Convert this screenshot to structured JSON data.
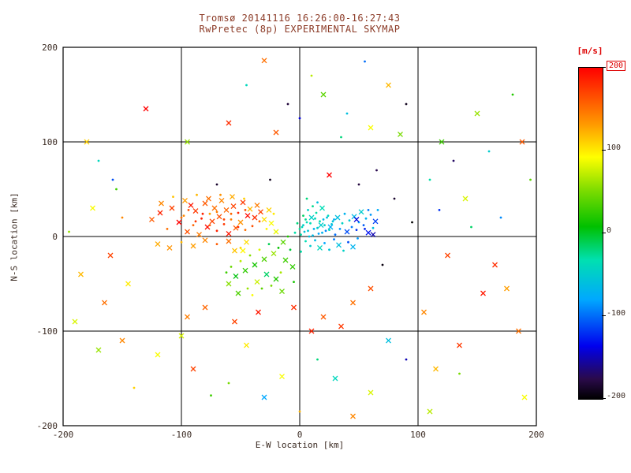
{
  "title": {
    "line1": "Tromsø 20141116 16:26:00-16:27:43",
    "line2": "RwPretec (8p) EXPERIMENTAL SKYMAP"
  },
  "colors": {
    "title_text": "#8b3a26",
    "axis_text": "#3a2a22",
    "frame": "#000000",
    "mps_label": "#dd0000",
    "top_tick": "#dd0000",
    "background": "#ffffff"
  },
  "chart_data": {
    "type": "scatter",
    "title": "Tromsø 20141116 16:26:00-16:27:43 — RwPretec (8p) EXPERIMENTAL SKYMAP",
    "xlabel": "E-W location [km]",
    "ylabel": "N-S location [km]",
    "xlim": [
      -200,
      200
    ],
    "ylim": [
      -200,
      200
    ],
    "xticks": [
      -200,
      -100,
      0,
      100,
      200
    ],
    "yticks": [
      -200,
      -100,
      0,
      100,
      200
    ],
    "grid": true,
    "legend_position": "none",
    "colorbar": {
      "label": "[m/s]",
      "ticks": [
        200,
        100,
        0,
        -100,
        -200
      ],
      "range": [
        -200,
        200
      ],
      "stops": [
        {
          "t": 0.0,
          "c": "#000000"
        },
        {
          "t": 0.06,
          "c": "#2a0a4a"
        },
        {
          "t": 0.16,
          "c": "#0000ee"
        },
        {
          "t": 0.3,
          "c": "#00a8ff"
        },
        {
          "t": 0.42,
          "c": "#00e0b0"
        },
        {
          "t": 0.52,
          "c": "#00c000"
        },
        {
          "t": 0.63,
          "c": "#7ddc00"
        },
        {
          "t": 0.73,
          "c": "#ffff00"
        },
        {
          "t": 0.83,
          "c": "#ff9900"
        },
        {
          "t": 1.0,
          "c": "#ff0000"
        }
      ]
    },
    "point_format": [
      "x_km",
      "y_km",
      "velocity_mps",
      "marker(1=x,0=dot)"
    ],
    "points": [
      [
        -125,
        18,
        160,
        1
      ],
      [
        -118,
        25,
        185,
        1
      ],
      [
        -112,
        8,
        150,
        0
      ],
      [
        -108,
        30,
        170,
        1
      ],
      [
        -102,
        15,
        200,
        1
      ],
      [
        -98,
        22,
        140,
        0
      ],
      [
        -95,
        5,
        165,
        1
      ],
      [
        -92,
        33,
        190,
        1
      ],
      [
        -90,
        12,
        155,
        0
      ],
      [
        -88,
        27,
        175,
        1
      ],
      [
        -85,
        2,
        145,
        1
      ],
      [
        -83,
        19,
        185,
        0
      ],
      [
        -80,
        35,
        160,
        1
      ],
      [
        -78,
        10,
        195,
        1
      ],
      [
        -76,
        24,
        130,
        0
      ],
      [
        -74,
        16,
        170,
        1
      ],
      [
        -72,
        30,
        150,
        1
      ],
      [
        -70,
        6,
        185,
        0
      ],
      [
        -68,
        21,
        165,
        1
      ],
      [
        -66,
        38,
        140,
        1
      ],
      [
        -64,
        13,
        175,
        0
      ],
      [
        -62,
        28,
        155,
        1
      ],
      [
        -60,
        3,
        190,
        1
      ],
      [
        -58,
        18,
        145,
        0
      ],
      [
        -56,
        32,
        170,
        1
      ],
      [
        -54,
        9,
        160,
        1
      ],
      [
        -52,
        25,
        185,
        0
      ],
      [
        -50,
        15,
        135,
        1
      ],
      [
        -48,
        36,
        175,
        1
      ],
      [
        -46,
        7,
        150,
        0
      ],
      [
        -44,
        22,
        195,
        1
      ],
      [
        -42,
        29,
        120,
        1
      ],
      [
        -40,
        11,
        165,
        0
      ],
      [
        -38,
        20,
        180,
        1
      ],
      [
        -36,
        33,
        145,
        1
      ],
      [
        -34,
        16,
        155,
        0
      ],
      [
        -33,
        26,
        170,
        1
      ],
      [
        -47,
        40,
        110,
        0
      ],
      [
        -57,
        42,
        125,
        1
      ],
      [
        -67,
        44,
        135,
        0
      ],
      [
        -77,
        40,
        150,
        1
      ],
      [
        -87,
        44,
        120,
        0
      ],
      [
        -97,
        38,
        130,
        1
      ],
      [
        -107,
        42,
        115,
        0
      ],
      [
        -117,
        35,
        140,
        1
      ],
      [
        -60,
        -5,
        150,
        1
      ],
      [
        -70,
        -8,
        160,
        0
      ],
      [
        -80,
        -4,
        140,
        1
      ],
      [
        -90,
        -10,
        130,
        1
      ],
      [
        -100,
        -6,
        120,
        0
      ],
      [
        -110,
        -12,
        135,
        1
      ],
      [
        -120,
        -8,
        125,
        1
      ],
      [
        -50,
        -12,
        110,
        0
      ],
      [
        -45,
        -6,
        105,
        1
      ],
      [
        -55,
        -15,
        115,
        1
      ],
      [
        -30,
        18,
        105,
        1
      ],
      [
        -28,
        8,
        95,
        0
      ],
      [
        -26,
        28,
        110,
        1
      ],
      [
        -24,
        14,
        90,
        1
      ],
      [
        -22,
        24,
        100,
        0
      ],
      [
        -20,
        5,
        85,
        1
      ],
      [
        -100,
        20,
        150,
        0
      ],
      [
        -94,
        28,
        165,
        0
      ],
      [
        -88,
        16,
        175,
        0
      ],
      [
        -82,
        24,
        185,
        0
      ],
      [
        -76,
        12,
        160,
        0
      ],
      [
        -70,
        26,
        145,
        0
      ],
      [
        -64,
        18,
        170,
        0
      ],
      [
        -58,
        24,
        155,
        0
      ],
      [
        -52,
        10,
        180,
        0
      ],
      [
        -46,
        28,
        165,
        0
      ],
      [
        2,
        10,
        -40,
        0
      ],
      [
        4,
        5,
        -55,
        0
      ],
      [
        6,
        15,
        -35,
        0
      ],
      [
        8,
        0,
        -60,
        0
      ],
      [
        10,
        20,
        -45,
        1
      ],
      [
        12,
        8,
        -70,
        0
      ],
      [
        14,
        25,
        -30,
        0
      ],
      [
        16,
        3,
        -80,
        0
      ],
      [
        18,
        12,
        -50,
        1
      ],
      [
        20,
        18,
        -65,
        0
      ],
      [
        22,
        6,
        -90,
        0
      ],
      [
        24,
        22,
        -40,
        0
      ],
      [
        26,
        10,
        -75,
        1
      ],
      [
        28,
        16,
        -55,
        0
      ],
      [
        30,
        2,
        -100,
        0
      ],
      [
        32,
        20,
        -60,
        1
      ],
      [
        34,
        8,
        -85,
        0
      ],
      [
        36,
        14,
        -45,
        0
      ],
      [
        38,
        24,
        -70,
        0
      ],
      [
        40,
        5,
        -110,
        1
      ],
      [
        42,
        17,
        -55,
        0
      ],
      [
        44,
        10,
        -95,
        0
      ],
      [
        46,
        21,
        -65,
        1
      ],
      [
        48,
        7,
        -120,
        0
      ],
      [
        50,
        15,
        -80,
        0
      ],
      [
        52,
        26,
        -50,
        1
      ],
      [
        54,
        12,
        -105,
        0
      ],
      [
        56,
        19,
        -70,
        0
      ],
      [
        58,
        4,
        -130,
        1
      ],
      [
        60,
        23,
        -85,
        0
      ],
      [
        62,
        9,
        -60,
        0
      ],
      [
        64,
        16,
        -115,
        1
      ],
      [
        66,
        28,
        -75,
        0
      ],
      [
        5,
        -5,
        -35,
        0
      ],
      [
        9,
        -10,
        -50,
        0
      ],
      [
        13,
        -4,
        -65,
        0
      ],
      [
        17,
        -12,
        -40,
        1
      ],
      [
        21,
        -7,
        -80,
        0
      ],
      [
        25,
        -14,
        -55,
        0
      ],
      [
        29,
        -3,
        -95,
        0
      ],
      [
        33,
        -9,
        -60,
        1
      ],
      [
        37,
        -15,
        -45,
        0
      ],
      [
        41,
        -6,
        -110,
        0
      ],
      [
        45,
        -11,
        -70,
        1
      ],
      [
        49,
        -2,
        -85,
        0
      ],
      [
        0,
        8,
        -25,
        0
      ],
      [
        -2,
        14,
        -20,
        0
      ],
      [
        -4,
        4,
        -30,
        0
      ],
      [
        3,
        22,
        -15,
        0
      ],
      [
        7,
        28,
        -45,
        0
      ],
      [
        11,
        32,
        -25,
        0
      ],
      [
        15,
        36,
        -60,
        0
      ],
      [
        19,
        30,
        -35,
        1
      ],
      [
        1,
        -16,
        -30,
        0
      ],
      [
        6,
        40,
        -20,
        0
      ],
      [
        48,
        18,
        -140,
        1
      ],
      [
        55,
        8,
        -125,
        0
      ],
      [
        62,
        2,
        -150,
        1
      ],
      [
        58,
        28,
        -95,
        0
      ],
      [
        1,
        2,
        -30,
        0
      ],
      [
        3,
        12,
        -45,
        0
      ],
      [
        5,
        18,
        -25,
        0
      ],
      [
        7,
        6,
        -55,
        0
      ],
      [
        9,
        14,
        -35,
        0
      ],
      [
        11,
        1,
        -65,
        0
      ],
      [
        13,
        19,
        -40,
        0
      ],
      [
        15,
        9,
        -50,
        0
      ],
      [
        17,
        16,
        -30,
        0
      ],
      [
        19,
        4,
        -70,
        0
      ],
      [
        21,
        12,
        -45,
        0
      ],
      [
        23,
        20,
        -60,
        0
      ],
      [
        25,
        7,
        -35,
        0
      ],
      [
        27,
        13,
        -55,
        0
      ],
      [
        29,
        18,
        -75,
        0
      ],
      [
        -10,
        0,
        20,
        0
      ],
      [
        -14,
        -6,
        40,
        1
      ],
      [
        -18,
        -12,
        10,
        0
      ],
      [
        -22,
        -18,
        60,
        1
      ],
      [
        -26,
        -8,
        -10,
        0
      ],
      [
        -30,
        -24,
        35,
        1
      ],
      [
        -34,
        -14,
        80,
        0
      ],
      [
        -38,
        -30,
        15,
        1
      ],
      [
        -42,
        -20,
        55,
        0
      ],
      [
        -46,
        -36,
        25,
        1
      ],
      [
        -50,
        -26,
        70,
        0
      ],
      [
        -54,
        -42,
        5,
        1
      ],
      [
        -58,
        -32,
        45,
        0
      ],
      [
        -12,
        -25,
        30,
        1
      ],
      [
        -16,
        -38,
        65,
        0
      ],
      [
        -20,
        -45,
        20,
        1
      ],
      [
        -24,
        -52,
        50,
        0
      ],
      [
        -28,
        -40,
        -15,
        1
      ],
      [
        -32,
        -55,
        40,
        0
      ],
      [
        -36,
        -48,
        75,
        1
      ],
      [
        -8,
        -14,
        -5,
        0
      ],
      [
        -6,
        -32,
        25,
        1
      ],
      [
        -44,
        -55,
        60,
        0
      ],
      [
        -52,
        -60,
        35,
        1
      ],
      [
        -40,
        -62,
        90,
        0
      ],
      [
        -15,
        -58,
        45,
        1
      ],
      [
        -5,
        -48,
        15,
        0
      ],
      [
        -60,
        -50,
        55,
        1
      ],
      [
        -62,
        -38,
        30,
        0
      ],
      [
        -48,
        -15,
        95,
        1
      ],
      [
        -30,
        186,
        150,
        1
      ],
      [
        -10,
        140,
        -180,
        0
      ],
      [
        20,
        150,
        40,
        1
      ],
      [
        40,
        130,
        -60,
        0
      ],
      [
        -60,
        120,
        180,
        1
      ],
      [
        60,
        115,
        90,
        1
      ],
      [
        35,
        105,
        -20,
        0
      ],
      [
        -95,
        100,
        60,
        1
      ],
      [
        90,
        140,
        -190,
        0
      ],
      [
        10,
        170,
        70,
        0
      ],
      [
        -45,
        160,
        -40,
        0
      ],
      [
        75,
        160,
        120,
        1
      ],
      [
        120,
        100,
        30,
        1
      ],
      [
        -130,
        135,
        200,
        1
      ],
      [
        55,
        185,
        -100,
        0
      ],
      [
        -20,
        110,
        160,
        1
      ],
      [
        0,
        125,
        -140,
        0
      ],
      [
        85,
        108,
        50,
        1
      ],
      [
        110,
        60,
        -30,
        0
      ],
      [
        125,
        -20,
        170,
        1
      ],
      [
        140,
        40,
        80,
        1
      ],
      [
        155,
        -60,
        190,
        1
      ],
      [
        170,
        20,
        -90,
        0
      ],
      [
        185,
        -100,
        150,
        1
      ],
      [
        195,
        60,
        40,
        0
      ],
      [
        115,
        -140,
        120,
        1
      ],
      [
        130,
        80,
        -170,
        0
      ],
      [
        150,
        130,
        60,
        1
      ],
      [
        165,
        -30,
        180,
        1
      ],
      [
        180,
        150,
        20,
        0
      ],
      [
        190,
        -170,
        90,
        1
      ],
      [
        105,
        -80,
        140,
        1
      ],
      [
        135,
        -115,
        175,
        1
      ],
      [
        160,
        90,
        -50,
        0
      ],
      [
        175,
        -55,
        130,
        1
      ],
      [
        145,
        10,
        -15,
        0
      ],
      [
        188,
        100,
        160,
        1
      ],
      [
        118,
        28,
        -120,
        0
      ],
      [
        -150,
        -110,
        140,
        1
      ],
      [
        -120,
        -125,
        90,
        1
      ],
      [
        -90,
        -140,
        170,
        1
      ],
      [
        -60,
        -155,
        50,
        0
      ],
      [
        -30,
        -170,
        -80,
        1
      ],
      [
        0,
        -185,
        120,
        0
      ],
      [
        30,
        -150,
        -40,
        1
      ],
      [
        60,
        -165,
        80,
        1
      ],
      [
        90,
        -130,
        -150,
        0
      ],
      [
        -170,
        -120,
        60,
        1
      ],
      [
        -45,
        -115,
        100,
        1
      ],
      [
        15,
        -130,
        -20,
        0
      ],
      [
        45,
        -190,
        140,
        1
      ],
      [
        -100,
        -105,
        80,
        1
      ],
      [
        -75,
        -168,
        30,
        0
      ],
      [
        110,
        -185,
        70,
        1
      ],
      [
        -140,
        -160,
        110,
        0
      ],
      [
        75,
        -110,
        -60,
        1
      ],
      [
        -15,
        -148,
        90,
        1
      ],
      [
        135,
        -145,
        50,
        0
      ],
      [
        -195,
        5,
        60,
        0
      ],
      [
        -185,
        -40,
        120,
        1
      ],
      [
        -175,
        30,
        90,
        1
      ],
      [
        -165,
        -70,
        150,
        1
      ],
      [
        -155,
        50,
        30,
        0
      ],
      [
        -190,
        -90,
        80,
        1
      ],
      [
        -170,
        80,
        -40,
        0
      ],
      [
        -160,
        -20,
        170,
        1
      ],
      [
        -180,
        100,
        110,
        1
      ],
      [
        -150,
        20,
        140,
        0
      ],
      [
        -145,
        -50,
        100,
        1
      ],
      [
        -158,
        60,
        -110,
        0
      ],
      [
        70,
        -30,
        -195,
        0
      ],
      [
        80,
        40,
        -185,
        0
      ],
      [
        -25,
        60,
        -190,
        0
      ],
      [
        95,
        15,
        -200,
        0
      ],
      [
        50,
        55,
        -180,
        0
      ],
      [
        65,
        70,
        -175,
        0
      ],
      [
        -70,
        55,
        -185,
        0
      ],
      [
        25,
        65,
        200,
        1
      ],
      [
        -5,
        -75,
        180,
        1
      ],
      [
        20,
        -85,
        160,
        1
      ],
      [
        -35,
        -80,
        190,
        1
      ],
      [
        45,
        -70,
        150,
        1
      ],
      [
        -55,
        -90,
        170,
        1
      ],
      [
        10,
        -100,
        185,
        1
      ],
      [
        -80,
        -75,
        155,
        1
      ],
      [
        35,
        -95,
        175,
        1
      ],
      [
        60,
        -55,
        165,
        1
      ],
      [
        -95,
        -85,
        145,
        1
      ]
    ]
  }
}
